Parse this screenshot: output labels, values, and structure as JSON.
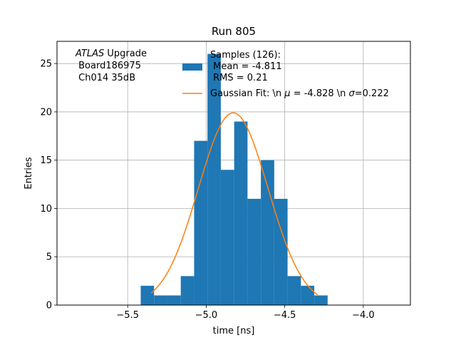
{
  "chart_data": {
    "type": "bar",
    "title": "Run 805",
    "xlabel": "time [ns]",
    "ylabel": "Entries",
    "xlim": [
      -5.95,
      -3.7
    ],
    "ylim": [
      0,
      27.3
    ],
    "x_ticks": [
      -5.5,
      -5.0,
      -4.5,
      -4.0
    ],
    "x_tick_labels": [
      "−5.5",
      "−5.0",
      "−4.5",
      "−4.0"
    ],
    "y_ticks": [
      0,
      5,
      10,
      15,
      20,
      25
    ],
    "y_tick_labels": [
      "0",
      "5",
      "10",
      "15",
      "20",
      "25"
    ],
    "grid": true,
    "legend_position": "top-right",
    "annotation": {
      "line1_italic": "ATLAS",
      "line1_rest": " Upgrade",
      "line2": " Board186975",
      "line3": " Ch014 35dB"
    },
    "histogram": {
      "name": "Samples (126):",
      "legend_lines": [
        "Samples (126):",
        " Mean = -4.811",
        " RMS = 0.21"
      ],
      "color": "#1f77b4",
      "bin_edges": [
        -5.417,
        -5.332,
        -5.247,
        -5.162,
        -5.077,
        -4.992,
        -4.907,
        -4.822,
        -4.737,
        -4.652,
        -4.567,
        -4.482,
        -4.397,
        -4.312,
        -4.227
      ],
      "counts": [
        2,
        1,
        1,
        3,
        17,
        26,
        14,
        19,
        11,
        15,
        11,
        3,
        2,
        1
      ]
    },
    "fit": {
      "name": "Gaussian Fit: \\n μ = -4.828 \\n σ=0.222",
      "legend_parts": [
        "Gaussian Fit: \\n ",
        "μ",
        " = -4.828 \\n ",
        "σ",
        "=0.222"
      ],
      "color": "#ff7f0e",
      "mu": -4.828,
      "sigma": 0.222,
      "amplitude": 19.9,
      "x_range": [
        -5.35,
        -4.29
      ]
    }
  }
}
